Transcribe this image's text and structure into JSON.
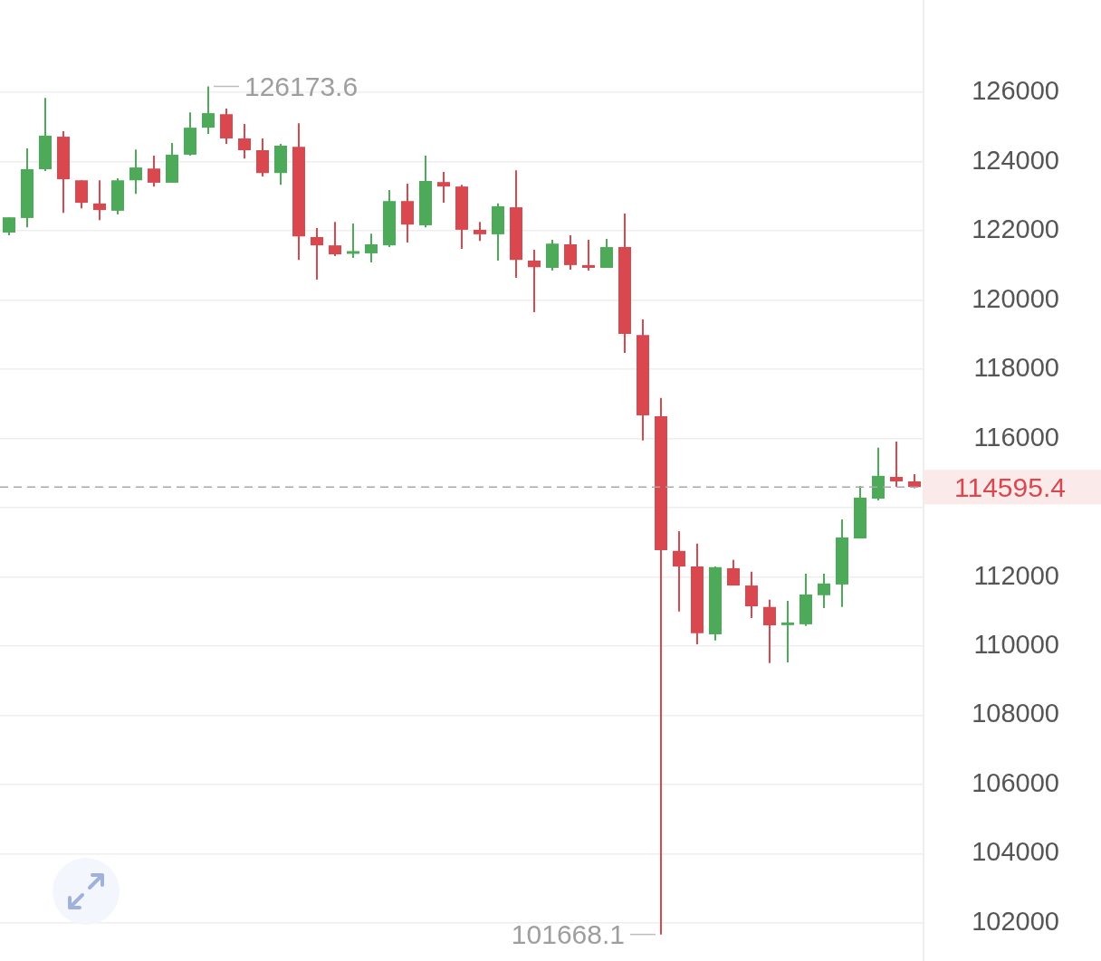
{
  "chart_data": {
    "type": "candlestick",
    "categories": [
      null,
      null,
      null,
      null,
      null,
      null,
      null,
      null,
      null,
      null,
      null,
      null,
      null,
      null,
      null,
      null,
      null,
      null,
      null,
      null,
      null,
      null,
      null,
      null,
      null,
      null,
      null,
      null,
      null,
      null,
      null,
      null,
      null,
      null,
      null,
      null,
      null,
      null,
      null,
      null,
      null,
      null,
      null,
      null,
      null,
      null,
      null,
      null,
      null,
      null,
      null
    ],
    "ohlc": [
      [
        121950,
        122390,
        121870,
        122390
      ],
      [
        122370,
        124380,
        122100,
        123780
      ],
      [
        123780,
        125840,
        123730,
        124750
      ],
      [
        124720,
        124880,
        122520,
        123490
      ],
      [
        123460,
        123460,
        122650,
        122810
      ],
      [
        122790,
        123460,
        122310,
        122600
      ],
      [
        122580,
        123520,
        122470,
        123460
      ],
      [
        123460,
        124350,
        123070,
        123830
      ],
      [
        123800,
        124170,
        123280,
        123390
      ],
      [
        123390,
        124540,
        123390,
        124200
      ],
      [
        124200,
        125420,
        124170,
        124980
      ],
      [
        124980,
        126173.6,
        124800,
        125400
      ],
      [
        125370,
        125530,
        124510,
        124670
      ],
      [
        124670,
        125090,
        124090,
        124330
      ],
      [
        124330,
        124670,
        123570,
        123670
      ],
      [
        123670,
        124510,
        123330,
        124460
      ],
      [
        124430,
        125110,
        121160,
        121840
      ],
      [
        121820,
        122080,
        120590,
        121580
      ],
      [
        121580,
        122260,
        121270,
        121320
      ],
      [
        121350,
        122210,
        121220,
        121400
      ],
      [
        121350,
        121920,
        121090,
        121610
      ],
      [
        121580,
        123180,
        121530,
        122860
      ],
      [
        122860,
        123360,
        121660,
        122180
      ],
      [
        122160,
        124170,
        122100,
        123440
      ],
      [
        123410,
        123700,
        122810,
        123280
      ],
      [
        123280,
        123330,
        121480,
        122030
      ],
      [
        122030,
        122260,
        121710,
        121900
      ],
      [
        121900,
        122790,
        121140,
        122710
      ],
      [
        122680,
        123750,
        120640,
        121160
      ],
      [
        121140,
        121450,
        119650,
        120950
      ],
      [
        120930,
        121740,
        120850,
        121630
      ],
      [
        121610,
        121870,
        120880,
        121010
      ],
      [
        121010,
        121740,
        120850,
        120930
      ],
      [
        120930,
        121770,
        120930,
        121530
      ],
      [
        121530,
        122500,
        118470,
        119020
      ],
      [
        118990,
        119440,
        115940,
        116670
      ],
      [
        116640,
        117170,
        101668.1,
        112770
      ],
      [
        112750,
        113320,
        111000,
        112300
      ],
      [
        112300,
        112960,
        110050,
        110370
      ],
      [
        110340,
        112300,
        110160,
        112280
      ],
      [
        112250,
        112490,
        111750,
        111750
      ],
      [
        111750,
        112150,
        110810,
        111150
      ],
      [
        111130,
        111340,
        109510,
        110600
      ],
      [
        110630,
        111310,
        109530,
        110660
      ],
      [
        110630,
        112090,
        110580,
        111490
      ],
      [
        111470,
        112090,
        111100,
        111810
      ],
      [
        111780,
        113660,
        111130,
        113140
      ],
      [
        113110,
        114630,
        113110,
        114290
      ],
      [
        114260,
        115730,
        114210,
        114920
      ],
      [
        114890,
        115910,
        114600,
        114760
      ],
      [
        114760,
        114970,
        114560,
        114595.4
      ]
    ],
    "colors": [
      "#4caa58",
      "#4caa58",
      "#4caa58",
      "#d9474f",
      "#d9474f",
      "#d9474f",
      "#4caa58",
      "#4caa58",
      "#d9474f",
      "#4caa58",
      "#4caa58",
      "#4caa58",
      "#d9474f",
      "#d9474f",
      "#d9474f",
      "#4caa58",
      "#d9474f",
      "#d9474f",
      "#d9474f",
      "#4caa58",
      "#4caa58",
      "#4caa58",
      "#d9474f",
      "#4caa58",
      "#d9474f",
      "#d9474f",
      "#d9474f",
      "#4caa58",
      "#d9474f",
      "#d9474f",
      "#4caa58",
      "#d9474f",
      "#d9474f",
      "#4caa58",
      "#d9474f",
      "#d9474f",
      "#d9474f",
      "#d9474f",
      "#d9474f",
      "#4caa58",
      "#d9474f",
      "#d9474f",
      "#d9474f",
      "#4caa58",
      "#4caa58",
      "#4caa58",
      "#4caa58",
      "#4caa58",
      "#4caa58",
      "#d9474f",
      "#d9474f"
    ],
    "ylim": [
      100900,
      128670
    ],
    "yticks": [
      102000,
      104000,
      106000,
      108000,
      110000,
      112000,
      {
        "value": 114000,
        "label": null
      },
      116000,
      118000,
      120000,
      122000,
      124000,
      126000
    ],
    "grid": "y",
    "tick_labels": "y",
    "ref_lines": [
      {
        "axis": "y",
        "value": 114595.4,
        "label": "114595.4",
        "color": "#a8a8a8",
        "line_style": "dashed"
      }
    ],
    "annotations": [
      "126173.6",
      "101668.1"
    ]
  }
}
